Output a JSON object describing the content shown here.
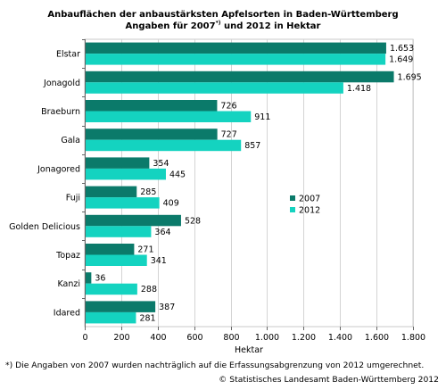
{
  "chart_data": {
    "type": "bar",
    "orientation": "horizontal",
    "title_line1": "Anbauflächen der anbaustärksten Apfelsorten in Baden-Württemberg",
    "title_line2_pre": "Angaben für 2007",
    "title_line2_sup": "*)",
    "title_line2_post": " und 2012 in Hektar",
    "xlabel": "Hektar",
    "ylabel": "",
    "xlim": [
      0,
      1800
    ],
    "xticks": [
      0,
      200,
      400,
      600,
      800,
      1000,
      1200,
      1400,
      1600,
      1800
    ],
    "xtick_labels": [
      "0",
      "200",
      "400",
      "600",
      "800",
      "1.000",
      "1.200",
      "1.400",
      "1.600",
      "1.800"
    ],
    "grid": "vertical",
    "legend_position": "center-right",
    "categories": [
      "Elstar",
      "Jonagold",
      "Braeburn",
      "Gala",
      "Jonagored",
      "Fuji",
      "Golden Delicious",
      "Topaz",
      "Kanzi",
      "Idared"
    ],
    "series": [
      {
        "name": "2007",
        "color": "#0b7a6a",
        "values": [
          1653,
          1695,
          726,
          727,
          354,
          285,
          528,
          271,
          36,
          387
        ],
        "labels": [
          "1.653",
          "1.695",
          "726",
          "727",
          "354",
          "285",
          "528",
          "271",
          "36",
          "387"
        ]
      },
      {
        "name": "2012",
        "color": "#14d3c0",
        "values": [
          1649,
          1418,
          911,
          857,
          445,
          409,
          364,
          341,
          288,
          281
        ],
        "labels": [
          "1.649",
          "1.418",
          "911",
          "857",
          "445",
          "409",
          "364",
          "341",
          "288",
          "281"
        ]
      }
    ]
  },
  "footnote": "*) Die Angaben von 2007 wurden nachträglich auf die Erfassungsabgrenzung von 2012 umgerechnet.",
  "copyright": "© Statistisches Landesamt Baden-Württemberg 2012"
}
